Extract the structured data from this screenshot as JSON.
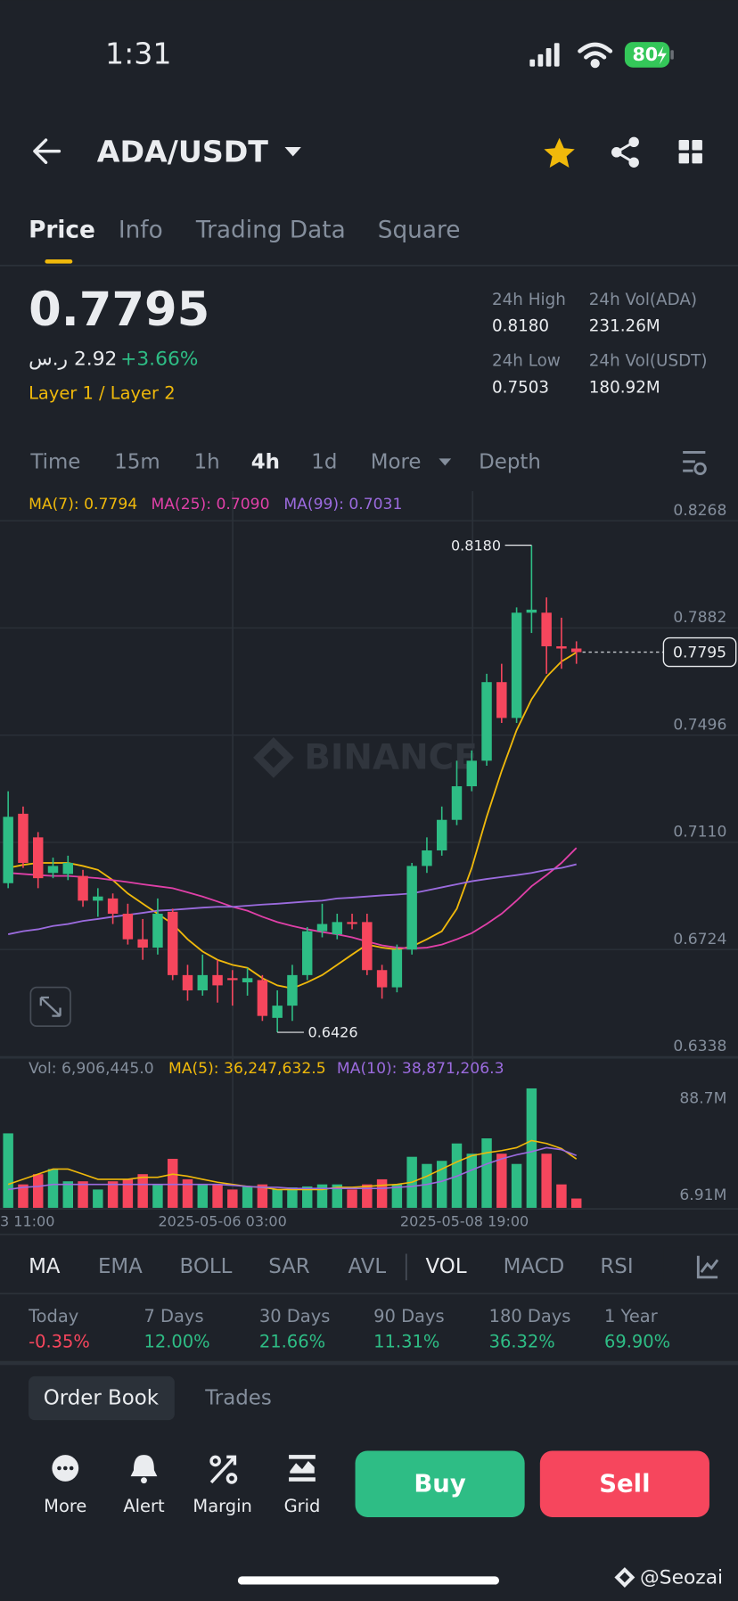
{
  "status_bar": {
    "time": "1:31",
    "battery": "80"
  },
  "header": {
    "pair": "ADA/USDT"
  },
  "tabs": [
    "Price",
    "Info",
    "Trading Data",
    "Square"
  ],
  "price": {
    "last": "0.7795",
    "local": "2.92 ر.س",
    "change": "+3.66%",
    "tags": "Layer 1 / Layer 2"
  },
  "stats": [
    {
      "label": "24h High",
      "value": "0.8180"
    },
    {
      "label": "24h Vol(ADA)",
      "value": "231.26M"
    },
    {
      "label": "24h Low",
      "value": "0.7503"
    },
    {
      "label": "24h Vol(USDT)",
      "value": "180.92M"
    }
  ],
  "intervals": [
    "Time",
    "15m",
    "1h",
    "4h",
    "1d",
    "More",
    "Depth"
  ],
  "chart_watermark": "BINANCE",
  "chart_data": [
    {
      "type": "candlestick",
      "up_color": "#2ebd85",
      "down_color": "#f6465d",
      "open": [
        0.6963,
        0.7213,
        0.7128,
        0.7,
        0.6996,
        0.6989,
        0.69,
        0.6908,
        0.6853,
        0.6761,
        0.6731,
        0.686,
        0.6632,
        0.6577,
        0.6632,
        0.6621,
        0.6606,
        0.6614,
        0.6478,
        0.6522,
        0.6632,
        0.679,
        0.6779,
        0.6823,
        0.6823,
        0.665,
        0.6588,
        0.6724,
        0.7025,
        0.7081,
        0.7191,
        0.7312,
        0.7404,
        0.7687,
        0.7558,
        0.7937,
        0.7937,
        0.7816,
        0.7808
      ],
      "high": [
        0.7294,
        0.7239,
        0.7147,
        0.7055,
        0.7062,
        0.7011,
        0.6945,
        0.6926,
        0.6889,
        0.6834,
        0.6908,
        0.6871,
        0.6669,
        0.6706,
        0.6687,
        0.665,
        0.6658,
        0.6632,
        0.6577,
        0.6669,
        0.6805,
        0.6889,
        0.6853,
        0.6853,
        0.6853,
        0.6669,
        0.6742,
        0.7036,
        0.7128,
        0.7239,
        0.7404,
        0.7441,
        0.7717,
        0.7753,
        0.7956,
        0.818,
        0.7992,
        0.7919,
        0.7834
      ],
      "low": [
        0.6945,
        0.7018,
        0.6945,
        0.6981,
        0.6974,
        0.6878,
        0.6842,
        0.6816,
        0.6742,
        0.6687,
        0.6706,
        0.6614,
        0.654,
        0.6558,
        0.6533,
        0.6522,
        0.6558,
        0.6467,
        0.6426,
        0.6467,
        0.6614,
        0.6768,
        0.6761,
        0.6797,
        0.6632,
        0.6547,
        0.657,
        0.6706,
        0.7,
        0.7062,
        0.7172,
        0.7294,
        0.7386,
        0.754,
        0.754,
        0.7864,
        0.7717,
        0.7735,
        0.7753
      ],
      "close": [
        0.7202,
        0.7036,
        0.6981,
        0.7025,
        0.7036,
        0.69,
        0.6915,
        0.6853,
        0.6761,
        0.6731,
        0.6853,
        0.6632,
        0.6577,
        0.6632,
        0.6595,
        0.6614,
        0.6621,
        0.6485,
        0.6522,
        0.6632,
        0.679,
        0.6816,
        0.6823,
        0.6816,
        0.665,
        0.6588,
        0.6724,
        0.7025,
        0.7081,
        0.7191,
        0.7312,
        0.7404,
        0.7687,
        0.7558,
        0.7937,
        0.7948,
        0.7816,
        0.7808,
        0.7795
      ],
      "series": [
        {
          "name": "MA(7): 0.7794",
          "color": "#f0b90b",
          "values": [
            0.7018,
            0.7029,
            0.7036,
            0.7036,
            0.7036,
            0.7025,
            0.7011,
            0.6974,
            0.6926,
            0.6889,
            0.6853,
            0.6816,
            0.6761,
            0.6717,
            0.6687,
            0.6669,
            0.6658,
            0.6621,
            0.6595,
            0.6584,
            0.6606,
            0.6632,
            0.6669,
            0.6706,
            0.6742,
            0.6731,
            0.6724,
            0.6735,
            0.6761,
            0.679,
            0.6871,
            0.7018,
            0.7202,
            0.7367,
            0.7514,
            0.7625,
            0.7706,
            0.7761,
            0.7794
          ]
        },
        {
          "name": "MA(25): 0.7090",
          "color": "#e040a8",
          "values": [
            0.7,
            0.6996,
            0.6992,
            0.6989,
            0.6989,
            0.6985,
            0.6981,
            0.6974,
            0.6967,
            0.6959,
            0.6952,
            0.6945,
            0.693,
            0.6915,
            0.6897,
            0.6878,
            0.6864,
            0.6842,
            0.6823,
            0.6809,
            0.6797,
            0.6787,
            0.6779,
            0.6768,
            0.6753,
            0.6739,
            0.6731,
            0.6728,
            0.6731,
            0.6742,
            0.6761,
            0.6783,
            0.6816,
            0.6853,
            0.69,
            0.6952,
            0.6992,
            0.7036,
            0.709
          ]
        },
        {
          "name": "MA(99): 0.7031",
          "color": "#9b6bde",
          "values": [
            0.6779,
            0.679,
            0.6797,
            0.6809,
            0.6816,
            0.6827,
            0.6834,
            0.6842,
            0.6849,
            0.6856,
            0.6864,
            0.6867,
            0.6871,
            0.6875,
            0.6878,
            0.6878,
            0.6882,
            0.6886,
            0.6889,
            0.6893,
            0.6897,
            0.69,
            0.6908,
            0.6911,
            0.6915,
            0.6919,
            0.6922,
            0.6926,
            0.6937,
            0.6948,
            0.6959,
            0.697,
            0.6978,
            0.6985,
            0.6992,
            0.7,
            0.7011,
            0.7018,
            0.7031
          ]
        }
      ],
      "ylim": [
        0.6338,
        0.8268
      ],
      "yticks": [
        0.8268,
        0.7882,
        0.7496,
        {
          "value": 0.711,
          "label": "0.7110"
        },
        0.6724,
        0.6338
      ],
      "last_price": {
        "value": 0.7795,
        "label": "0.7795"
      },
      "annotations": [
        {
          "value": 0.818,
          "label": "0.8180"
        },
        0.6426
      ]
    },
    {
      "type": "bar",
      "legend": "Vol: 6,906,445.0",
      "values": [
        55300000,
        17400000,
        25000000,
        28800000,
        19700000,
        19700000,
        13600000,
        19700000,
        21200000,
        25000000,
        17400000,
        36400000,
        21200000,
        17400000,
        17400000,
        13600000,
        15900000,
        17400000,
        13600000,
        15200000,
        15900000,
        17400000,
        17400000,
        13600000,
        17400000,
        21200000,
        17400000,
        37900000,
        32600000,
        34900000,
        47800000,
        40200000,
        51600000,
        40200000,
        32600000,
        88700000,
        40200000,
        17400000,
        6906445
      ],
      "series": [
        {
          "name": "MA(5): 36,247,632.5",
          "color": "#f0b90b",
          "values": [
            17400000,
            21200000,
            25000000,
            28800000,
            28800000,
            25000000,
            21200000,
            21200000,
            21200000,
            22700000,
            22700000,
            25000000,
            23500000,
            21200000,
            19000000,
            17400000,
            15900000,
            15200000,
            13600000,
            13600000,
            13600000,
            13600000,
            15200000,
            15200000,
            15900000,
            16700000,
            17400000,
            19000000,
            23500000,
            28800000,
            34100000,
            38700000,
            40900000,
            42500000,
            44700000,
            50000000,
            47800000,
            44000000,
            36247632.5
          ]
        },
        {
          "name": "MA(10): 38,871,206.3",
          "color": "#9b6bde",
          "values": [
            13600000,
            15200000,
            15900000,
            17400000,
            17400000,
            17400000,
            17400000,
            17400000,
            17400000,
            17400000,
            17400000,
            17400000,
            17400000,
            17400000,
            17400000,
            16700000,
            15900000,
            15200000,
            15200000,
            14400000,
            14400000,
            14400000,
            14400000,
            14400000,
            14400000,
            14400000,
            15200000,
            15900000,
            17400000,
            19700000,
            23500000,
            28100000,
            32600000,
            36400000,
            39400000,
            41700000,
            44700000,
            43200000,
            38871206.3
          ]
        }
      ],
      "ylim": [
        0,
        88700000
      ],
      "yticks": [
        {
          "value": 88700000,
          "label": "88.7M"
        },
        {
          "value": 6910000,
          "label": "6.91M"
        }
      ]
    }
  ],
  "x_axis_labels": [
    "3 11:00",
    "2025-05-06 03:00",
    "2025-05-08 19:00"
  ],
  "indicators": [
    "MA",
    "EMA",
    "BOLL",
    "SAR",
    "AVL",
    "VOL",
    "MACD",
    "RSI"
  ],
  "performance": [
    {
      "period": "Today",
      "change": "-0.35%"
    },
    {
      "period": "7 Days",
      "change": "12.00%"
    },
    {
      "period": "30 Days",
      "change": "21.66%"
    },
    {
      "period": "90 Days",
      "change": "11.31%"
    },
    {
      "period": "180 Days",
      "change": "36.32%"
    },
    {
      "period": "1 Year",
      "change": "69.90%"
    }
  ],
  "book_tabs": [
    "Order Book",
    "Trades"
  ],
  "actions": [
    "More",
    "Alert",
    "Margin",
    "Grid"
  ],
  "buy": "Buy",
  "sell": "Sell",
  "credit": "@Seozai"
}
